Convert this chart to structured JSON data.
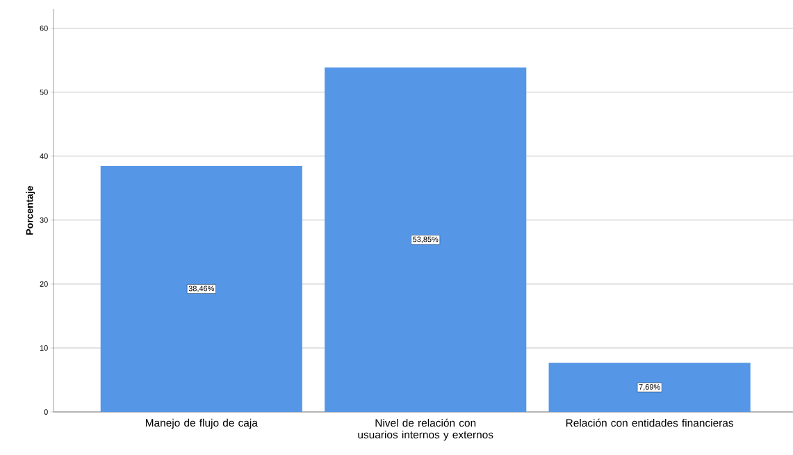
{
  "chart_data": {
    "type": "bar",
    "ylabel": "Porcentaje",
    "categories": [
      "Manejo de flujo de caja",
      "Nivel de relación con usuarios internos y externos",
      "Relación con entidades financieras"
    ],
    "values": [
      38.46,
      53.85,
      7.69
    ],
    "value_labels": [
      "38,46%",
      "53,85%",
      "7,69%"
    ],
    "color": "#5596e6",
    "ylim": [
      0,
      63
    ],
    "yticks": [
      0,
      10,
      20,
      30,
      40,
      50,
      60
    ],
    "grid": "y"
  }
}
